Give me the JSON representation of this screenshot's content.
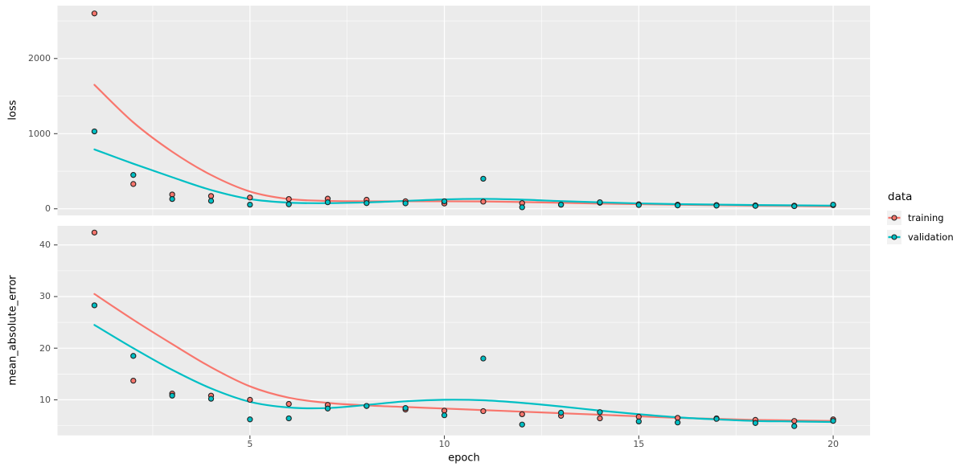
{
  "figure": {
    "type": "faceted-scatter-smooth",
    "x_axis": {
      "title": "epoch",
      "ticks": [
        5,
        10,
        15,
        20
      ],
      "minor_ticks": [
        2.5,
        7.5,
        12.5,
        17.5
      ],
      "range": [
        0.05,
        20.95
      ]
    },
    "legend": {
      "title": "data",
      "position": "right",
      "items": [
        {
          "label": "training",
          "color": "#F8766D"
        },
        {
          "label": "validation",
          "color": "#00BFC4"
        }
      ]
    },
    "colors": {
      "panel_background": "#EBEBEB",
      "gridline": "#FFFFFF",
      "tick_label": "#4D4D4D",
      "tick_mark": "#333333",
      "point_outline": "#222222",
      "training": "#F8766D",
      "validation": "#00BFC4"
    }
  },
  "chart_data": [
    {
      "type": "scatter",
      "facet": "loss",
      "title": "",
      "xlabel": "epoch",
      "ylabel": "loss",
      "grid": true,
      "x": [
        1,
        2,
        3,
        4,
        5,
        6,
        7,
        8,
        9,
        10,
        11,
        12,
        13,
        14,
        15,
        16,
        17,
        18,
        19,
        20
      ],
      "yticks": [
        0,
        1000,
        2000
      ],
      "yminor": [
        500,
        1500,
        2500
      ],
      "ylim": [
        -88,
        2704
      ],
      "series": [
        {
          "name": "training",
          "color": "#F8766D",
          "points": [
            2600,
            330,
            190,
            170,
            150,
            130,
            135,
            120,
            100,
            70,
            95,
            75,
            55,
            80,
            60,
            55,
            50,
            45,
            42,
            48
          ],
          "smooth": [
            1650,
            1150,
            760,
            450,
            230,
            130,
            105,
            100,
            100,
            100,
            98,
            90,
            80,
            70,
            62,
            55,
            48,
            42,
            37,
            32
          ]
        },
        {
          "name": "validation",
          "color": "#00BFC4",
          "points": [
            1030,
            450,
            130,
            105,
            55,
            60,
            87,
            76,
            73,
            100,
            400,
            20,
            55,
            87,
            50,
            45,
            42,
            38,
            35,
            55
          ],
          "smooth": [
            790,
            600,
            420,
            250,
            130,
            82,
            75,
            85,
            105,
            125,
            132,
            122,
            102,
            86,
            72,
            62,
            56,
            50,
            46,
            42
          ]
        }
      ]
    },
    {
      "type": "scatter",
      "facet": "mean_absolute_error",
      "title": "",
      "xlabel": "epoch",
      "ylabel": "mean_absolute_error",
      "grid": true,
      "x": [
        1,
        2,
        3,
        4,
        5,
        6,
        7,
        8,
        9,
        10,
        11,
        12,
        13,
        14,
        15,
        16,
        17,
        18,
        19,
        20
      ],
      "yticks": [
        10,
        20,
        30,
        40
      ],
      "yminor": [
        5,
        15,
        25,
        35
      ],
      "ylim": [
        3.1,
        43.7
      ],
      "series": [
        {
          "name": "training",
          "color": "#F8766D",
          "points": [
            42.4,
            13.7,
            11.2,
            10.8,
            10.0,
            9.2,
            9.0,
            8.8,
            8.1,
            7.9,
            7.8,
            7.2,
            6.9,
            6.4,
            6.7,
            6.5,
            6.4,
            6.1,
            5.9,
            6.2
          ],
          "smooth": [
            30.5,
            25.5,
            20.8,
            16.3,
            12.6,
            10.4,
            9.4,
            8.9,
            8.6,
            8.3,
            8.0,
            7.7,
            7.4,
            7.1,
            6.8,
            6.5,
            6.3,
            6.1,
            6.0,
            5.9
          ]
        },
        {
          "name": "validation",
          "color": "#00BFC4",
          "points": [
            28.3,
            18.5,
            10.8,
            10.2,
            6.2,
            6.4,
            8.3,
            8.8,
            8.4,
            7.0,
            18.0,
            5.2,
            7.5,
            7.6,
            5.8,
            5.6,
            6.3,
            5.5,
            4.9,
            5.9
          ],
          "smooth": [
            24.5,
            20.0,
            15.8,
            12.2,
            9.6,
            8.5,
            8.4,
            9.0,
            9.7,
            10.0,
            9.9,
            9.4,
            8.7,
            7.9,
            7.2,
            6.6,
            6.2,
            5.9,
            5.8,
            5.7
          ]
        }
      ]
    }
  ]
}
